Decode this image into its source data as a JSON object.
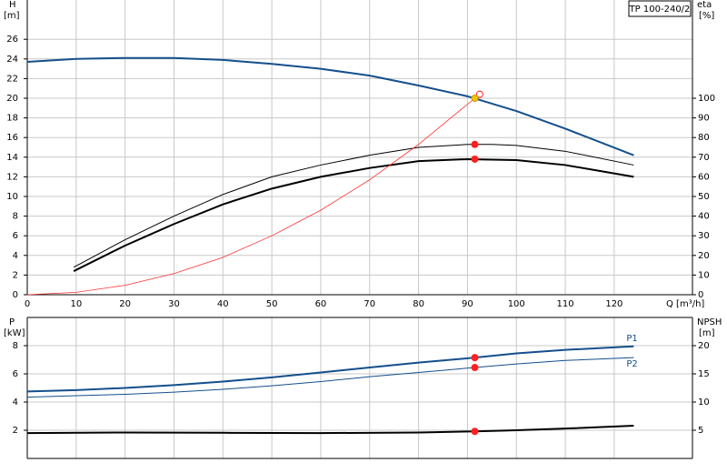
{
  "chart_data": [
    {
      "type": "line",
      "title": "TP 100-240/2",
      "ylabel": "H",
      "yunit": "[m]",
      "y2label": "eta",
      "y2unit": "[%]",
      "xlabel": "Q [m³/h]",
      "xlim": [
        0,
        136
      ],
      "xticks": [
        0,
        10,
        20,
        30,
        40,
        50,
        60,
        70,
        80,
        90,
        100,
        110,
        120
      ],
      "ylim": [
        0,
        30
      ],
      "yticks": [
        0,
        2,
        4,
        6,
        8,
        10,
        12,
        14,
        16,
        18,
        20,
        22,
        24,
        26
      ],
      "y2lim": [
        0,
        150
      ],
      "y2ticks": [
        0,
        10,
        20,
        30,
        40,
        50,
        60,
        70,
        80,
        90,
        100
      ],
      "grid": true,
      "series": [
        {
          "color": "#144f8c",
          "width": 2,
          "x": [
            0,
            10,
            20,
            30,
            40,
            50,
            60,
            70,
            80,
            90,
            100,
            110,
            124
          ],
          "values": [
            23.7,
            24.0,
            24.1,
            24.1,
            23.9,
            23.5,
            23.0,
            22.3,
            21.3,
            20.2,
            18.7,
            16.9,
            14.2
          ]
        },
        {
          "color": "#000000",
          "width": 1,
          "axis": "y2",
          "x": [
            9.5,
            20,
            30,
            40,
            50,
            60,
            70,
            80,
            90,
            95,
            100,
            110,
            124
          ],
          "values": [
            14,
            28,
            40,
            51,
            60,
            66,
            71,
            75,
            76.5,
            76.5,
            76,
            73,
            66
          ]
        },
        {
          "color": "#000000",
          "width": 2,
          "axis": "y2",
          "x": [
            9.5,
            20,
            30,
            40,
            50,
            60,
            70,
            80,
            90,
            100,
            110,
            124
          ],
          "values": [
            12,
            25,
            36,
            46,
            54,
            60,
            64.5,
            68,
            69,
            68.5,
            66,
            60
          ]
        },
        {
          "color": "#ff3030",
          "width": 0.8,
          "x": [
            0,
            10,
            20,
            30,
            40,
            50,
            60,
            70,
            80,
            91.5
          ],
          "values": [
            0,
            0.24,
            0.96,
            2.15,
            3.8,
            6.0,
            8.6,
            11.7,
            15.3,
            20
          ]
        }
      ],
      "markers": [
        {
          "x": 92.5,
          "y": 20.4,
          "color": "#ffffff"
        },
        {
          "x": 91.5,
          "y": 20,
          "color": "#f5c400"
        },
        {
          "x": 91.5,
          "y": 76.5,
          "axis": "y2",
          "color": "#ff2020"
        },
        {
          "x": 91.5,
          "y": 69,
          "axis": "y2",
          "color": "#ff2020"
        }
      ]
    },
    {
      "type": "line",
      "ylabel": "P",
      "yunit": "[kW]",
      "y2label": "NPSH",
      "y2unit": "[m]",
      "xlim": [
        0,
        136
      ],
      "ylim": [
        0,
        10
      ],
      "yticks": [
        2,
        4,
        6,
        8
      ],
      "y2lim": [
        0,
        25
      ],
      "y2ticks": [
        5,
        10,
        15,
        20
      ],
      "grid": true,
      "series": [
        {
          "name": "P1",
          "color": "#144f8c",
          "width": 2,
          "x": [
            0,
            10,
            20,
            30,
            40,
            50,
            60,
            70,
            80,
            91.5,
            100,
            110,
            124
          ],
          "values": [
            4.75,
            4.85,
            5.0,
            5.2,
            5.45,
            5.75,
            6.1,
            6.45,
            6.8,
            7.15,
            7.45,
            7.7,
            7.95
          ]
        },
        {
          "name": "P2",
          "color": "#144f8c",
          "width": 1,
          "x": [
            0,
            10,
            20,
            30,
            40,
            50,
            60,
            70,
            80,
            91.5,
            100,
            110,
            124
          ],
          "values": [
            4.35,
            4.45,
            4.55,
            4.7,
            4.9,
            5.15,
            5.45,
            5.8,
            6.1,
            6.45,
            6.7,
            6.95,
            7.15
          ]
        },
        {
          "color": "#000000",
          "width": 2,
          "axis": "y2",
          "x": [
            0,
            20,
            40,
            60,
            80,
            91.5,
            100,
            110,
            124
          ],
          "values": [
            4.5,
            4.6,
            4.55,
            4.5,
            4.6,
            4.8,
            5.0,
            5.3,
            5.8
          ]
        }
      ],
      "markers": [
        {
          "x": 91.5,
          "y": 7.15,
          "color": "#ff2020"
        },
        {
          "x": 91.5,
          "y": 6.45,
          "color": "#ff2020"
        },
        {
          "x": 91.5,
          "y": 4.8,
          "axis": "y2",
          "color": "#ff2020"
        }
      ]
    }
  ]
}
